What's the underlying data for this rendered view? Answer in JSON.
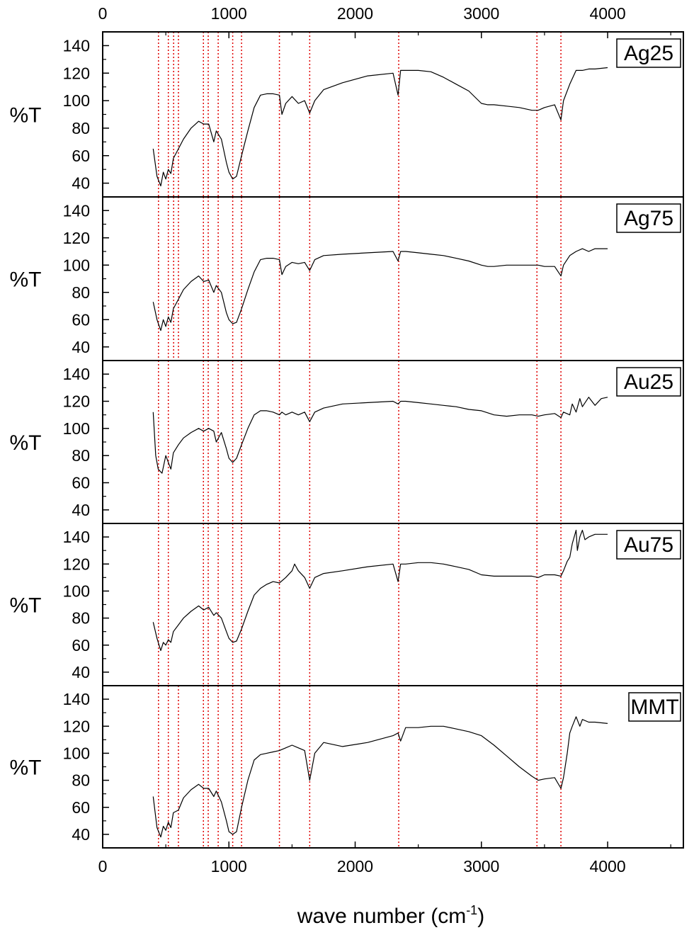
{
  "chart_data": {
    "type": "line",
    "xlabel": "wave number (cm",
    "xlabel_sup": "-1",
    "xlabel_close": ")",
    "ylabel": "%T",
    "xlim": [
      0,
      4600
    ],
    "ylim": [
      30,
      150
    ],
    "x_ticks": [
      0,
      1000,
      2000,
      3000,
      4000
    ],
    "y_ticks": [
      40,
      60,
      80,
      100,
      120,
      140
    ],
    "grid": false,
    "line_color": "#000000",
    "marker_line_color": "#e00000",
    "marker_lines": [
      {
        "x": 442,
        "panels": [
          0,
          1,
          2,
          3,
          4
        ]
      },
      {
        "x": 520,
        "panels": [
          0,
          1,
          2,
          3,
          4
        ]
      },
      {
        "x": 562,
        "panels": [
          0,
          1
        ]
      },
      {
        "x": 600,
        "panels": [
          0,
          1,
          4
        ]
      },
      {
        "x": 798,
        "panels": [
          0,
          1,
          2,
          3,
          4
        ]
      },
      {
        "x": 836,
        "panels": [
          0,
          1,
          2,
          3,
          4
        ]
      },
      {
        "x": 915,
        "panels": [
          0,
          1,
          2,
          3,
          4
        ]
      },
      {
        "x": 1030,
        "panels": [
          0,
          1,
          2,
          3,
          4
        ]
      },
      {
        "x": 1100,
        "panels": [
          0,
          1,
          2,
          3,
          4
        ]
      },
      {
        "x": 1400,
        "panels": [
          0,
          1,
          2,
          3,
          4
        ]
      },
      {
        "x": 1640,
        "panels": [
          0,
          1,
          2,
          3,
          4
        ]
      },
      {
        "x": 2345,
        "panels": [
          0,
          1,
          2,
          3,
          4
        ]
      },
      {
        "x": 3440,
        "panels": [
          0,
          1,
          2,
          3,
          4
        ]
      },
      {
        "x": 3630,
        "panels": [
          0,
          1,
          2,
          3,
          4
        ]
      }
    ],
    "panels": [
      {
        "label": "Ag25",
        "x": [
          400,
          430,
          460,
          480,
          500,
          520,
          540,
          560,
          600,
          640,
          700,
          760,
          800,
          840,
          880,
          900,
          940,
          980,
          1000,
          1030,
          1060,
          1100,
          1150,
          1200,
          1250,
          1300,
          1350,
          1400,
          1420,
          1450,
          1500,
          1550,
          1600,
          1640,
          1680,
          1750,
          1900,
          2100,
          2300,
          2340,
          2360,
          2400,
          2500,
          2600,
          2700,
          2800,
          2900,
          3000,
          3050,
          3100,
          3200,
          3300,
          3400,
          3450,
          3500,
          3580,
          3630,
          3650,
          3700,
          3750,
          3800,
          3850,
          3900,
          4000
        ],
        "y": [
          65,
          45,
          38,
          48,
          43,
          50,
          47,
          58,
          65,
          72,
          80,
          85,
          83,
          83,
          70,
          78,
          72,
          55,
          48,
          43,
          45,
          60,
          78,
          95,
          104,
          105,
          105,
          104,
          90,
          98,
          103,
          98,
          100,
          91,
          100,
          108,
          113,
          118,
          120,
          104,
          122,
          122,
          122,
          121,
          117,
          112,
          107,
          98,
          97,
          97,
          96,
          95,
          93,
          93,
          95,
          97,
          86,
          100,
          112,
          122,
          122,
          123,
          123,
          124
        ]
      },
      {
        "label": "Ag75",
        "x": [
          400,
          430,
          460,
          480,
          500,
          520,
          540,
          560,
          600,
          640,
          700,
          760,
          800,
          840,
          880,
          900,
          940,
          980,
          1000,
          1030,
          1060,
          1100,
          1150,
          1200,
          1250,
          1300,
          1350,
          1400,
          1420,
          1450,
          1500,
          1550,
          1600,
          1640,
          1680,
          1750,
          1900,
          2100,
          2300,
          2340,
          2360,
          2400,
          2500,
          2600,
          2700,
          2800,
          2900,
          3000,
          3050,
          3100,
          3200,
          3300,
          3400,
          3450,
          3500,
          3580,
          3630,
          3650,
          3700,
          3750,
          3800,
          3850,
          3900,
          4000
        ],
        "y": [
          73,
          60,
          52,
          60,
          55,
          62,
          58,
          68,
          75,
          82,
          88,
          92,
          88,
          89,
          80,
          85,
          80,
          65,
          60,
          57,
          58,
          68,
          82,
          95,
          104,
          105,
          105,
          104,
          93,
          99,
          102,
          101,
          102,
          96,
          104,
          107,
          108,
          109,
          110,
          103,
          110,
          110,
          109,
          108,
          107,
          105,
          103,
          100,
          99,
          99,
          100,
          100,
          100,
          100,
          99,
          99,
          92,
          100,
          107,
          110,
          112,
          110,
          112,
          112
        ]
      },
      {
        "label": "Au25",
        "x": [
          400,
          420,
          440,
          470,
          500,
          520,
          540,
          560,
          600,
          640,
          700,
          760,
          800,
          840,
          880,
          900,
          940,
          980,
          1000,
          1030,
          1060,
          1100,
          1150,
          1200,
          1250,
          1300,
          1350,
          1400,
          1420,
          1450,
          1500,
          1550,
          1600,
          1640,
          1680,
          1750,
          1900,
          2100,
          2300,
          2340,
          2360,
          2400,
          2500,
          2600,
          2700,
          2800,
          2900,
          3000,
          3100,
          3200,
          3300,
          3400,
          3450,
          3500,
          3580,
          3630,
          3650,
          3700,
          3720,
          3750,
          3780,
          3800,
          3850,
          3900,
          3950,
          4000
        ],
        "y": [
          112,
          80,
          70,
          67,
          80,
          75,
          70,
          82,
          88,
          93,
          97,
          100,
          98,
          100,
          98,
          90,
          97,
          85,
          78,
          75,
          78,
          88,
          100,
          110,
          113,
          113,
          112,
          110,
          112,
          110,
          112,
          110,
          112,
          105,
          112,
          115,
          118,
          119,
          120,
          118,
          120,
          120,
          119,
          118,
          117,
          116,
          114,
          113,
          110,
          109,
          110,
          110,
          109,
          110,
          111,
          108,
          112,
          110,
          118,
          112,
          122,
          116,
          123,
          117,
          122,
          123
        ]
      },
      {
        "label": "Au75",
        "x": [
          400,
          430,
          460,
          480,
          500,
          520,
          540,
          560,
          600,
          640,
          700,
          760,
          800,
          840,
          880,
          900,
          940,
          980,
          1000,
          1030,
          1060,
          1100,
          1150,
          1200,
          1250,
          1300,
          1350,
          1400,
          1450,
          1500,
          1520,
          1550,
          1600,
          1640,
          1680,
          1750,
          1900,
          2100,
          2300,
          2340,
          2360,
          2400,
          2500,
          2600,
          2700,
          2800,
          2900,
          3000,
          3100,
          3200,
          3300,
          3400,
          3450,
          3500,
          3580,
          3630,
          3650,
          3680,
          3700,
          3720,
          3750,
          3760,
          3780,
          3800,
          3820,
          3850,
          3900,
          4000
        ],
        "y": [
          77,
          65,
          56,
          62,
          60,
          64,
          62,
          70,
          75,
          80,
          85,
          89,
          86,
          88,
          82,
          84,
          80,
          70,
          65,
          62,
          63,
          72,
          85,
          97,
          102,
          105,
          107,
          106,
          110,
          115,
          120,
          115,
          110,
          102,
          110,
          113,
          115,
          118,
          120,
          107,
          120,
          120,
          121,
          121,
          120,
          118,
          116,
          112,
          111,
          111,
          111,
          111,
          110,
          112,
          112,
          111,
          115,
          122,
          125,
          135,
          145,
          130,
          140,
          145,
          138,
          140,
          142,
          142
        ]
      },
      {
        "label": "MMT",
        "x": [
          400,
          430,
          460,
          480,
          500,
          520,
          540,
          560,
          600,
          640,
          700,
          760,
          800,
          840,
          880,
          900,
          940,
          980,
          1000,
          1030,
          1060,
          1100,
          1150,
          1200,
          1250,
          1300,
          1350,
          1400,
          1450,
          1500,
          1550,
          1600,
          1640,
          1680,
          1750,
          1900,
          2100,
          2300,
          2340,
          2360,
          2400,
          2500,
          2600,
          2700,
          2800,
          2900,
          3000,
          3100,
          3200,
          3300,
          3400,
          3450,
          3500,
          3580,
          3630,
          3650,
          3680,
          3700,
          3720,
          3750,
          3780,
          3800,
          3850,
          3900,
          4000
        ],
        "y": [
          68,
          45,
          38,
          46,
          43,
          49,
          45,
          56,
          58,
          67,
          73,
          77,
          74,
          74,
          68,
          72,
          64,
          50,
          42,
          40,
          42,
          60,
          80,
          95,
          99,
          100,
          101,
          102,
          104,
          106,
          104,
          102,
          80,
          100,
          108,
          105,
          108,
          113,
          115,
          109,
          119,
          119,
          120,
          120,
          118,
          116,
          113,
          106,
          98,
          90,
          83,
          80,
          81,
          82,
          74,
          82,
          100,
          115,
          120,
          127,
          120,
          125,
          123,
          123,
          122
        ]
      }
    ]
  }
}
